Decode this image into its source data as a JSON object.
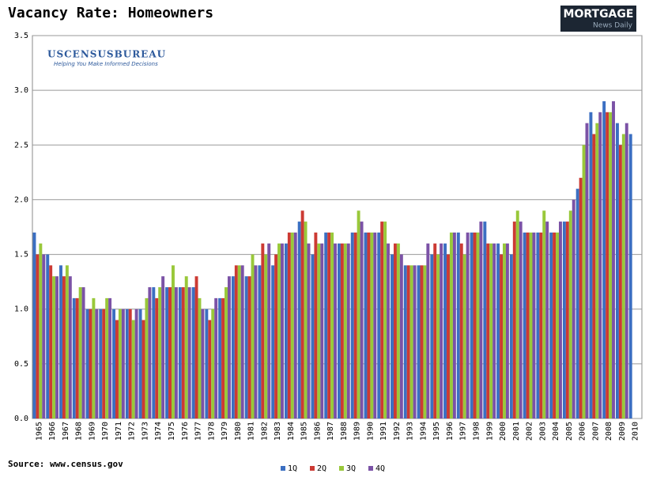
{
  "chart_data": {
    "type": "bar",
    "title": "Vacancy Rate: Homeowners",
    "source": "Source: www.census.gov",
    "logo_mnd": [
      "MORTGAGE",
      "News Daily"
    ],
    "logo_census": [
      "USCENSUSBUREAU",
      "Helping You Make Informed Decisions"
    ],
    "categories": [
      "1965",
      "1966",
      "1967",
      "1968",
      "1969",
      "1970",
      "1971",
      "1972",
      "1973",
      "1974",
      "1975",
      "1976",
      "1977",
      "1978",
      "1979",
      "1980",
      "1981",
      "1982",
      "1983",
      "1984",
      "1985",
      "1986",
      "1987",
      "1988",
      "1989",
      "1990",
      "1991",
      "1992",
      "1993",
      "1994",
      "1995",
      "1996",
      "1997",
      "1998",
      "1999",
      "2000",
      "2001",
      "2002",
      "2003",
      "2004",
      "2005",
      "2006",
      "2007",
      "2008",
      "2009",
      "2010"
    ],
    "series": [
      {
        "name": "1Q",
        "color": "#3b6fc2",
        "values": [
          1.7,
          1.5,
          1.4,
          1.1,
          1.0,
          1.0,
          1.0,
          1.0,
          1.0,
          1.2,
          1.2,
          1.2,
          1.2,
          1.0,
          1.1,
          1.3,
          1.3,
          1.4,
          1.4,
          1.6,
          1.8,
          1.5,
          1.7,
          1.6,
          1.7,
          1.7,
          1.7,
          1.5,
          1.4,
          1.4,
          1.5,
          1.6,
          1.7,
          1.7,
          1.8,
          1.6,
          1.5,
          1.7,
          1.7,
          1.7,
          1.8,
          2.1,
          2.8,
          2.9,
          2.7,
          2.6
        ]
      },
      {
        "name": "2Q",
        "color": "#cc3a33",
        "values": [
          1.5,
          1.4,
          1.3,
          1.1,
          1.0,
          1.0,
          0.9,
          1.0,
          0.9,
          1.1,
          1.2,
          1.2,
          1.3,
          0.9,
          1.1,
          1.4,
          1.3,
          1.6,
          1.5,
          1.7,
          1.9,
          1.7,
          1.7,
          1.6,
          1.7,
          1.7,
          1.8,
          1.6,
          1.4,
          1.4,
          1.6,
          1.5,
          1.6,
          1.7,
          1.6,
          1.5,
          1.8,
          1.7,
          1.7,
          1.7,
          1.8,
          2.2,
          2.6,
          2.8,
          2.5,
          null
        ]
      },
      {
        "name": "3Q",
        "color": "#99c83a",
        "values": [
          1.6,
          1.3,
          1.4,
          1.2,
          1.1,
          1.1,
          1.0,
          0.9,
          1.1,
          1.2,
          1.4,
          1.3,
          1.1,
          1.0,
          1.2,
          1.4,
          1.5,
          1.5,
          1.6,
          1.7,
          1.8,
          1.6,
          1.7,
          1.6,
          1.9,
          1.7,
          1.8,
          1.6,
          1.4,
          1.4,
          1.5,
          1.7,
          1.5,
          1.7,
          1.6,
          1.6,
          1.9,
          1.7,
          1.9,
          1.7,
          1.9,
          2.5,
          2.7,
          2.8,
          2.6,
          null
        ]
      },
      {
        "name": "4Q",
        "color": "#7b52a6",
        "values": [
          1.5,
          1.3,
          1.3,
          1.2,
          1.0,
          1.1,
          1.0,
          1.0,
          1.2,
          1.3,
          1.2,
          1.2,
          1.0,
          1.1,
          1.3,
          1.4,
          1.4,
          1.6,
          1.6,
          1.7,
          1.6,
          1.6,
          1.6,
          1.6,
          1.8,
          1.7,
          1.6,
          1.5,
          1.4,
          1.6,
          1.6,
          1.7,
          1.7,
          1.8,
          1.6,
          1.6,
          1.8,
          1.7,
          1.8,
          1.8,
          2.0,
          2.7,
          2.8,
          2.9,
          2.7,
          null
        ]
      }
    ],
    "ylim": [
      0,
      3.5
    ],
    "yticks": [
      {
        "value": 0,
        "label": "0.0"
      },
      0.5,
      {
        "value": 1,
        "label": "1.0"
      },
      1.5,
      {
        "value": 2,
        "label": "2.0"
      },
      2.5,
      {
        "value": 3,
        "label": "3.0"
      },
      3.5
    ],
    "grid": true,
    "legend": "bottom"
  }
}
